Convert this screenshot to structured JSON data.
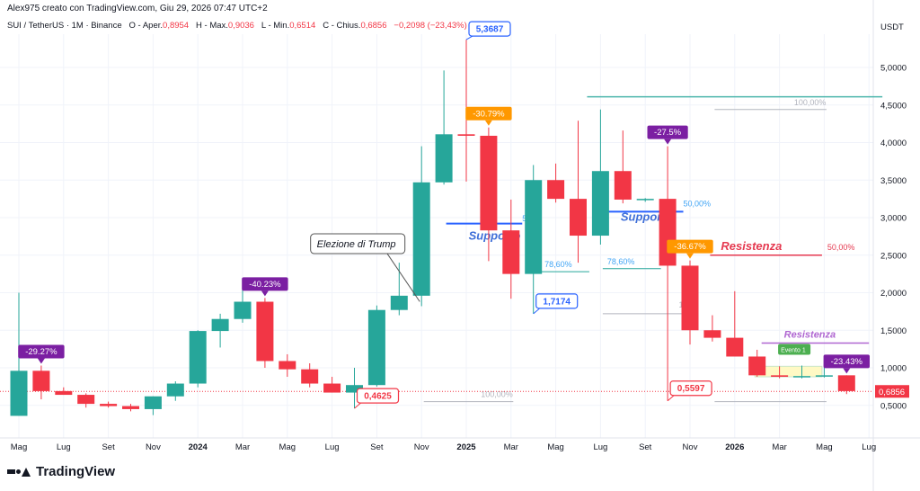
{
  "header": {
    "credit": "Alex975 creato con TradingView.com, Giu 29, 2026 07:47 UTC+2",
    "symbol": "SUI / TetherUS · 1M · Binance",
    "open_label": "O - Aper.",
    "open": "0,8954",
    "high_label": "H - Max.",
    "high": "0,9036",
    "low_label": "L - Min.",
    "low": "0,6514",
    "close_label": "C - Chius.",
    "close": "0,6856",
    "change": "−0,2098 (−23,43%)",
    "unit": "USDT"
  },
  "logo": {
    "text": "TradingView"
  },
  "colors": {
    "up": "#26a69a",
    "down": "#f23645",
    "blue": "#2962ff",
    "orange": "#ff9800",
    "purple": "#7b1fa2",
    "green": "#4caf50",
    "fib_gray": "#b2b5be",
    "resist_red": "#e53950",
    "resist_purple": "#b067d1"
  },
  "chart_data": {
    "type": "candlestick",
    "ylim": [
      0,
      5.6
    ],
    "y_ticks": [
      {
        "v": 0.5,
        "label": "0,5000"
      },
      {
        "v": 1.0,
        "label": "1,0000"
      },
      {
        "v": 1.5,
        "label": "1,5000"
      },
      {
        "v": 2.0,
        "label": "2,0000"
      },
      {
        "v": 2.5,
        "label": "2,5000"
      },
      {
        "v": 3.0,
        "label": "3,0000"
      },
      {
        "v": 3.5,
        "label": "3,5000"
      },
      {
        "v": 4.0,
        "label": "4,0000"
      },
      {
        "v": 4.5,
        "label": "4,5000"
      },
      {
        "v": 5.0,
        "label": "5,0000"
      }
    ],
    "x_ticks": [
      {
        "i": 0,
        "label": "Mag",
        "bold": false
      },
      {
        "i": 2,
        "label": "Lug",
        "bold": false
      },
      {
        "i": 4,
        "label": "Set",
        "bold": false
      },
      {
        "i": 6,
        "label": "Nov",
        "bold": false
      },
      {
        "i": 8,
        "label": "2024",
        "bold": true
      },
      {
        "i": 10,
        "label": "Mar",
        "bold": false
      },
      {
        "i": 12,
        "label": "Mag",
        "bold": false
      },
      {
        "i": 14,
        "label": "Lug",
        "bold": false
      },
      {
        "i": 16,
        "label": "Set",
        "bold": false
      },
      {
        "i": 18,
        "label": "Nov",
        "bold": false
      },
      {
        "i": 20,
        "label": "2025",
        "bold": true
      },
      {
        "i": 22,
        "label": "Mar",
        "bold": false
      },
      {
        "i": 24,
        "label": "Mag",
        "bold": false
      },
      {
        "i": 26,
        "label": "Lug",
        "bold": false
      },
      {
        "i": 28,
        "label": "Set",
        "bold": false
      },
      {
        "i": 30,
        "label": "Nov",
        "bold": false
      },
      {
        "i": 32,
        "label": "2026",
        "bold": true
      },
      {
        "i": 34,
        "label": "Mar",
        "bold": false
      },
      {
        "i": 36,
        "label": "Mag",
        "bold": false
      },
      {
        "i": 38,
        "label": "Lug",
        "bold": false
      }
    ],
    "candles": [
      {
        "o": 0.36,
        "h": 2.0,
        "l": 0.36,
        "c": 0.96
      },
      {
        "o": 0.96,
        "h": 1.03,
        "l": 0.58,
        "c": 0.69
      },
      {
        "o": 0.69,
        "h": 0.74,
        "l": 0.64,
        "c": 0.64
      },
      {
        "o": 0.64,
        "h": 0.66,
        "l": 0.47,
        "c": 0.52
      },
      {
        "o": 0.52,
        "h": 0.55,
        "l": 0.47,
        "c": 0.49
      },
      {
        "o": 0.49,
        "h": 0.52,
        "l": 0.42,
        "c": 0.45
      },
      {
        "o": 0.45,
        "h": 0.62,
        "l": 0.37,
        "c": 0.62
      },
      {
        "o": 0.62,
        "h": 0.82,
        "l": 0.56,
        "c": 0.79
      },
      {
        "o": 0.79,
        "h": 1.5,
        "l": 0.74,
        "c": 1.49
      },
      {
        "o": 1.49,
        "h": 1.72,
        "l": 1.27,
        "c": 1.65
      },
      {
        "o": 1.65,
        "h": 2.18,
        "l": 1.6,
        "c": 1.88
      },
      {
        "o": 1.88,
        "h": 1.93,
        "l": 1.0,
        "c": 1.09
      },
      {
        "o": 1.09,
        "h": 1.18,
        "l": 0.88,
        "c": 0.98
      },
      {
        "o": 0.98,
        "h": 1.06,
        "l": 0.74,
        "c": 0.79
      },
      {
        "o": 0.79,
        "h": 0.88,
        "l": 0.67,
        "c": 0.67
      },
      {
        "o": 0.67,
        "h": 1.0,
        "l": 0.46,
        "c": 0.77
      },
      {
        "o": 0.77,
        "h": 1.83,
        "l": 0.75,
        "c": 1.77
      },
      {
        "o": 1.77,
        "h": 2.4,
        "l": 1.7,
        "c": 1.96
      },
      {
        "o": 1.96,
        "h": 3.95,
        "l": 1.82,
        "c": 3.47
      },
      {
        "o": 3.47,
        "h": 4.96,
        "l": 3.44,
        "c": 4.11
      },
      {
        "o": 4.11,
        "h": 5.37,
        "l": 3.48,
        "c": 4.09
      },
      {
        "o": 4.09,
        "h": 4.2,
        "l": 2.42,
        "c": 2.83
      },
      {
        "o": 2.83,
        "h": 3.24,
        "l": 1.92,
        "c": 2.25
      },
      {
        "o": 2.25,
        "h": 3.7,
        "l": 1.72,
        "c": 3.5
      },
      {
        "o": 3.5,
        "h": 3.72,
        "l": 3.2,
        "c": 3.25
      },
      {
        "o": 3.25,
        "h": 4.29,
        "l": 2.4,
        "c": 2.76
      },
      {
        "o": 2.76,
        "h": 4.44,
        "l": 2.64,
        "c": 3.62
      },
      {
        "o": 3.62,
        "h": 4.16,
        "l": 3.19,
        "c": 3.24
      },
      {
        "o": 3.24,
        "h": 3.26,
        "l": 3.21,
        "c": 3.25
      },
      {
        "o": 3.25,
        "h": 3.95,
        "l": 0.56,
        "c": 2.36
      },
      {
        "o": 2.36,
        "h": 2.43,
        "l": 1.31,
        "c": 1.5
      },
      {
        "o": 1.5,
        "h": 1.7,
        "l": 1.35,
        "c": 1.4
      },
      {
        "o": 1.4,
        "h": 2.02,
        "l": 1.15,
        "c": 1.15
      },
      {
        "o": 1.15,
        "h": 1.24,
        "l": 0.88,
        "c": 0.9
      },
      {
        "o": 0.9,
        "h": 1.02,
        "l": 0.86,
        "c": 0.88
      },
      {
        "o": 0.88,
        "h": 1.03,
        "l": 0.86,
        "c": 0.89
      },
      {
        "o": 0.89,
        "h": 1.1,
        "l": 0.87,
        "c": 0.9
      },
      {
        "o": 0.9,
        "h": 0.9,
        "l": 0.65,
        "c": 0.69
      }
    ],
    "price_tags": [
      {
        "label": "5,3687",
        "i": 20,
        "v": 5.37,
        "color": "blue",
        "dir": "up"
      },
      {
        "label": "1,7174",
        "i": 23,
        "v": 1.72,
        "color": "blue",
        "dir": "down"
      },
      {
        "label": "0,4625",
        "i": 15,
        "v": 0.46,
        "color": "red",
        "dir": "down"
      },
      {
        "label": "0,5597",
        "i": 29,
        "v": 0.56,
        "color": "red",
        "dir": "down"
      }
    ],
    "pct_tags": [
      {
        "label": "-29.27%",
        "i": 1,
        "v": 1.03,
        "color": "purple"
      },
      {
        "label": "-40.23%",
        "i": 11,
        "v": 1.93,
        "color": "purple"
      },
      {
        "label": "-30.79%",
        "i": 21,
        "v": 4.2,
        "color": "orange"
      },
      {
        "label": "-27.5%",
        "i": 29,
        "v": 3.95,
        "color": "purple"
      },
      {
        "label": "-36.67%",
        "i": 30,
        "v": 2.43,
        "color": "orange"
      },
      {
        "label": "-23.43%",
        "i": 37,
        "v": 0.9,
        "color": "purple"
      }
    ],
    "supports": [
      {
        "label": "Supporto",
        "i0": 19.1,
        "i1": 22.5,
        "v": 2.92
      },
      {
        "label": "Supporto",
        "i0": 26.1,
        "i1": 29.7,
        "v": 3.08
      }
    ],
    "resistances": [
      {
        "label": "Resistenza",
        "i0": 30.9,
        "i1": 35.9,
        "v": 2.5,
        "color": "resist_red",
        "fib": "50,00%"
      },
      {
        "label": "Resistenza",
        "i0": 33.2,
        "i1": 38.0,
        "v": 1.33,
        "color": "resist_purple",
        "fib": ""
      }
    ],
    "fib_lines": [
      {
        "i0": 18.1,
        "i1": 22.1,
        "v": 0.55,
        "label": "100,00%"
      },
      {
        "i0": 23.3,
        "i1": 25.5,
        "v": 2.28,
        "label": "78,60%"
      },
      {
        "i0": 26.1,
        "i1": 28.7,
        "v": 2.32,
        "label": "78,60%"
      },
      {
        "i0": 26.1,
        "i1": 29.7,
        "v": 1.72,
        "label": ""
      },
      {
        "i0": 31.1,
        "i1": 36.1,
        "v": 4.44,
        "label": "100,00%"
      },
      {
        "i0": 31.1,
        "i1": 36.1,
        "v": 0.55,
        "label": ""
      }
    ],
    "fib_extra_labels": [
      {
        "i": 22.5,
        "v": 2.95,
        "label": "50"
      },
      {
        "i": 29.7,
        "v": 3.15,
        "label": "50,00%"
      },
      {
        "i": 29.5,
        "v": 1.8,
        "label": "100"
      }
    ],
    "teal_line": {
      "i0": 25.4,
      "i1": 38.6,
      "v": 4.61
    },
    "annotation": {
      "label": "Elezione di Trump",
      "i": 13.2,
      "v": 2.64,
      "target_i": 18,
      "target_v": 1.93
    },
    "event": {
      "label": "Evento 1",
      "i": 34.1,
      "v": 1.15
    },
    "range_box": {
      "i0": 32.9,
      "i1": 35.9,
      "v0": 0.88,
      "v1": 1.02
    },
    "current_price": {
      "v": 0.6856,
      "label": "0,6856"
    }
  }
}
